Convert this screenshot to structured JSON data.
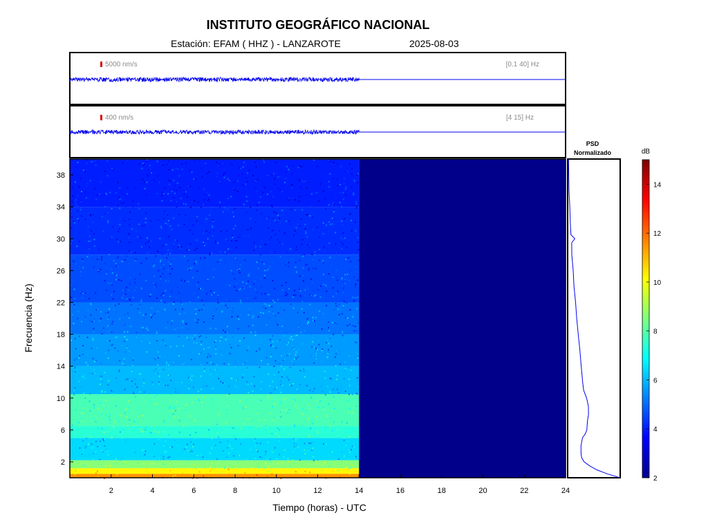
{
  "header": {
    "institution": "INSTITUTO GEOGRÁFICO NACIONAL",
    "station_label": "Estación:  EFAM ( HHZ ) - LANZAROTE",
    "date": "2025-08-03"
  },
  "chart_data": [
    {
      "type": "line",
      "name": "trace-broadband",
      "scale_label": "5000 nm/s",
      "band_label": "[0.1 40] Hz",
      "x_range": [
        0,
        24
      ],
      "data_end_hour": 14,
      "color": "#0000ee"
    },
    {
      "type": "line",
      "name": "trace-filtered",
      "scale_label": "400 nm/s",
      "band_label": "[4 15] Hz",
      "x_range": [
        0,
        24
      ],
      "data_end_hour": 14,
      "color": "#0000ee"
    },
    {
      "type": "heatmap",
      "name": "spectrogram",
      "xlabel": "Tiempo (horas) - UTC",
      "ylabel": "Frecuencia  (Hz)",
      "xlim": [
        0,
        24
      ],
      "ylim": [
        0,
        40
      ],
      "x_ticks": [
        "2",
        "4",
        "6",
        "8",
        "10",
        "12",
        "14",
        "16",
        "18",
        "20",
        "22",
        "24"
      ],
      "y_ticks": [
        "2",
        "6",
        "10",
        "14",
        "18",
        "22",
        "26",
        "30",
        "34",
        "38"
      ],
      "data_end_hour": 14,
      "bands": [
        {
          "f_low": 0,
          "f_high": 0.5,
          "db": 11.5
        },
        {
          "f_low": 0.5,
          "f_high": 1.2,
          "db": 10.2
        },
        {
          "f_low": 1.2,
          "f_high": 2.2,
          "db": 8.6
        },
        {
          "f_low": 2.2,
          "f_high": 5,
          "db": 6.4
        },
        {
          "f_low": 5,
          "f_high": 6.5,
          "db": 7.4
        },
        {
          "f_low": 6.5,
          "f_high": 10.5,
          "db": 7.8
        },
        {
          "f_low": 10.5,
          "f_high": 14,
          "db": 6.0
        },
        {
          "f_low": 14,
          "f_high": 18,
          "db": 5.6
        },
        {
          "f_low": 18,
          "f_high": 22,
          "db": 5.1
        },
        {
          "f_low": 22,
          "f_high": 28,
          "db": 4.6
        },
        {
          "f_low": 28,
          "f_high": 34,
          "db": 4.2
        },
        {
          "f_low": 34,
          "f_high": 40,
          "db": 4.0
        }
      ]
    },
    {
      "type": "line",
      "name": "psd",
      "title_line1": "PSD",
      "title_line2": "Normalizado",
      "ylim": [
        0,
        40
      ],
      "points": [
        {
          "f": 0,
          "v": 1.0
        },
        {
          "f": 0.5,
          "v": 0.75
        },
        {
          "f": 1,
          "v": 0.55
        },
        {
          "f": 1.5,
          "v": 0.42
        },
        {
          "f": 2,
          "v": 0.32
        },
        {
          "f": 2.5,
          "v": 0.27
        },
        {
          "f": 3,
          "v": 0.25
        },
        {
          "f": 4,
          "v": 0.26
        },
        {
          "f": 5,
          "v": 0.28
        },
        {
          "f": 5.5,
          "v": 0.33
        },
        {
          "f": 6,
          "v": 0.36
        },
        {
          "f": 7,
          "v": 0.38
        },
        {
          "f": 8,
          "v": 0.4
        },
        {
          "f": 9,
          "v": 0.4
        },
        {
          "f": 10,
          "v": 0.36
        },
        {
          "f": 11,
          "v": 0.3
        },
        {
          "f": 12,
          "v": 0.28
        },
        {
          "f": 14,
          "v": 0.26
        },
        {
          "f": 16,
          "v": 0.23
        },
        {
          "f": 18,
          "v": 0.2
        },
        {
          "f": 20,
          "v": 0.17
        },
        {
          "f": 22,
          "v": 0.15
        },
        {
          "f": 24,
          "v": 0.12
        },
        {
          "f": 26,
          "v": 0.1
        },
        {
          "f": 28,
          "v": 0.08
        },
        {
          "f": 29.5,
          "v": 0.07
        },
        {
          "f": 30,
          "v": 0.14
        },
        {
          "f": 30.5,
          "v": 0.06
        },
        {
          "f": 32,
          "v": 0.05
        },
        {
          "f": 34,
          "v": 0.04
        },
        {
          "f": 36,
          "v": 0.03
        },
        {
          "f": 38,
          "v": 0.02
        },
        {
          "f": 40,
          "v": 0.02
        }
      ]
    },
    {
      "type": "colorbar",
      "name": "colorbar",
      "unit": "dB",
      "range": [
        2,
        15
      ],
      "ticks": [
        "2",
        "4",
        "6",
        "8",
        "10",
        "12",
        "14"
      ]
    }
  ],
  "colors": {
    "trace": "#0000ee",
    "no_data": "#00008b",
    "scale_marker": "#dd0000",
    "label_gray": "#8a8a8a"
  }
}
